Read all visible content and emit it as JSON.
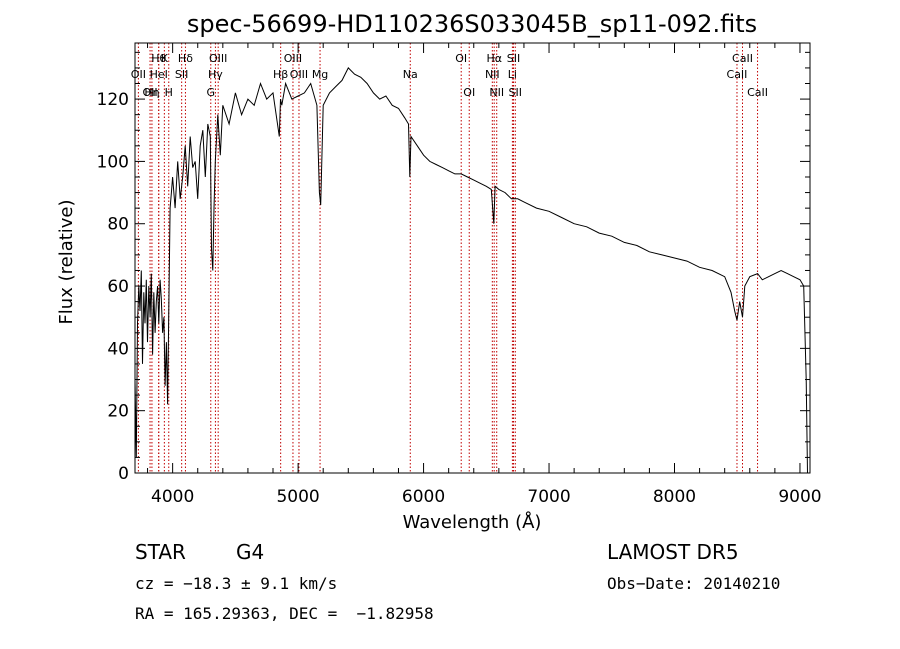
{
  "chart_data": {
    "type": "line",
    "title": "spec-56699-HD110236S033045B_sp11-092.fits",
    "xlabel": "Wavelength (Å)",
    "ylabel": "Flux (relative)",
    "xlim": [
      3700,
      9080
    ],
    "ylim": [
      0,
      138
    ],
    "xticks": [
      4000,
      5000,
      6000,
      7000,
      8000,
      9000
    ],
    "yticks": [
      0,
      20,
      40,
      60,
      80,
      100,
      120
    ],
    "grid": false,
    "series": [
      {
        "x": [
          3700,
          3710,
          3720,
          3730,
          3740,
          3750,
          3760,
          3770,
          3780,
          3790,
          3800,
          3810,
          3820,
          3830,
          3840,
          3850,
          3860,
          3870,
          3880,
          3890,
          3900,
          3910,
          3920,
          3930,
          3940,
          3950,
          3960,
          3970,
          3980,
          3990,
          4000,
          4020,
          4040,
          4060,
          4080,
          4100,
          4120,
          4140,
          4160,
          4180,
          4200,
          4220,
          4240,
          4260,
          4280,
          4300,
          4310,
          4320,
          4330,
          4340,
          4360,
          4380,
          4400,
          4450,
          4500,
          4550,
          4600,
          4650,
          4700,
          4750,
          4800,
          4850,
          4860,
          4870,
          4900,
          4950,
          5000,
          5050,
          5100,
          5150,
          5170,
          5180,
          5200,
          5250,
          5300,
          5350,
          5400,
          5450,
          5500,
          5550,
          5600,
          5650,
          5700,
          5750,
          5800,
          5850,
          5880,
          5890,
          5900,
          5950,
          6000,
          6050,
          6100,
          6150,
          6200,
          6250,
          6300,
          6350,
          6400,
          6450,
          6500,
          6540,
          6560,
          6570,
          6600,
          6650,
          6700,
          6750,
          6800,
          6900,
          7000,
          7100,
          7200,
          7300,
          7400,
          7500,
          7600,
          7700,
          7800,
          7900,
          8000,
          8100,
          8200,
          8300,
          8400,
          8450,
          8480,
          8498,
          8520,
          8542,
          8560,
          8600,
          8662,
          8700,
          8750,
          8800,
          8850,
          8900,
          8950,
          9000,
          9030,
          9050,
          9060
        ],
        "y": [
          30,
          5,
          48,
          60,
          52,
          65,
          35,
          58,
          48,
          62,
          42,
          60,
          50,
          64,
          38,
          58,
          45,
          55,
          60,
          48,
          62,
          56,
          45,
          50,
          28,
          42,
          22,
          55,
          85,
          90,
          95,
          85,
          100,
          88,
          95,
          105,
          92,
          108,
          98,
          100,
          88,
          105,
          110,
          95,
          112,
          108,
          72,
          65,
          85,
          100,
          115,
          102,
          118,
          112,
          122,
          115,
          120,
          118,
          125,
          120,
          122,
          108,
          120,
          118,
          125,
          120,
          121,
          122,
          125,
          118,
          90,
          86,
          118,
          122,
          124,
          126,
          130,
          128,
          127,
          125,
          122,
          120,
          121,
          118,
          117,
          114,
          112,
          95,
          108,
          105,
          102,
          100,
          99,
          98,
          97,
          96,
          96,
          95,
          94,
          93,
          92,
          91,
          80,
          92,
          91,
          90,
          88,
          88,
          87,
          85,
          84,
          82,
          80,
          79,
          77,
          76,
          74,
          73,
          71,
          70,
          69,
          68,
          66,
          65,
          63,
          58,
          52,
          49,
          55,
          50,
          60,
          63,
          64,
          62,
          63,
          64,
          65,
          64,
          63,
          62,
          60,
          30,
          0
        ]
      }
    ],
    "lines": [
      {
        "x": 3727,
        "labels": [
          {
            "text": "OII",
            "row": 2
          }
        ]
      },
      {
        "x": 3820,
        "labels": [
          {
            "text": "OII",
            "row": 3
          }
        ]
      },
      {
        "x": 3835,
        "labels": [
          {
            "text": "Hη",
            "row": 3
          }
        ]
      },
      {
        "x": 3889,
        "labels": [
          {
            "text": "Hθ",
            "row": 1
          }
        ]
      },
      {
        "x": 3934,
        "labels": [
          {
            "text": "K",
            "row": 1
          }
        ]
      },
      {
        "x": 3969,
        "labels": [
          {
            "text": "H",
            "row": 3
          }
        ]
      },
      {
        "x": 3889,
        "labels": [
          {
            "text": "HeI",
            "row": 2
          }
        ]
      },
      {
        "x": 4072,
        "labels": [
          {
            "text": "SII",
            "row": 2
          }
        ]
      },
      {
        "x": 4102,
        "labels": [
          {
            "text": "Hδ",
            "row": 1
          }
        ]
      },
      {
        "x": 4304,
        "labels": [
          {
            "text": "G",
            "row": 3
          }
        ]
      },
      {
        "x": 4341,
        "labels": [
          {
            "text": "Hγ",
            "row": 2
          }
        ]
      },
      {
        "x": 4363,
        "labels": [
          {
            "text": "OIII",
            "row": 1
          }
        ]
      },
      {
        "x": 4861,
        "labels": [
          {
            "text": "Hβ",
            "row": 2
          }
        ]
      },
      {
        "x": 4959,
        "labels": [
          {
            "text": "OIII",
            "row": 1
          }
        ]
      },
      {
        "x": 5007,
        "labels": [
          {
            "text": "OIII",
            "row": 2
          }
        ]
      },
      {
        "x": 5175,
        "labels": [
          {
            "text": "Mg",
            "row": 2
          }
        ]
      },
      {
        "x": 5894,
        "labels": [
          {
            "text": "Na",
            "row": 2
          }
        ]
      },
      {
        "x": 6300,
        "labels": [
          {
            "text": "OI",
            "row": 1
          }
        ]
      },
      {
        "x": 6364,
        "labels": [
          {
            "text": "OI",
            "row": 3
          }
        ]
      },
      {
        "x": 6548,
        "labels": [
          {
            "text": "NII",
            "row": 2
          }
        ]
      },
      {
        "x": 6563,
        "labels": [
          {
            "text": "Hα",
            "row": 1
          }
        ]
      },
      {
        "x": 6583,
        "labels": [
          {
            "text": "NII",
            "row": 3
          }
        ]
      },
      {
        "x": 6708,
        "labels": [
          {
            "text": "Li",
            "row": 2
          }
        ]
      },
      {
        "x": 6717,
        "labels": [
          {
            "text": "SII",
            "row": 1
          }
        ]
      },
      {
        "x": 6731,
        "labels": [
          {
            "text": "SII",
            "row": 3
          }
        ]
      },
      {
        "x": 8498,
        "labels": [
          {
            "text": "CaII",
            "row": 2
          }
        ]
      },
      {
        "x": 8542,
        "labels": [
          {
            "text": "CaII",
            "row": 1
          }
        ]
      },
      {
        "x": 8662,
        "labels": [
          {
            "text": "CaII",
            "row": 3
          }
        ]
      }
    ],
    "line_color": "#000000",
    "marker_color": "#c00000"
  },
  "info": {
    "object_type": "STAR",
    "subclass": "G4",
    "survey": "LAMOST DR5",
    "velocity": "cz = −18.3 ± 9.1 km/s",
    "obs_date": "Obs−Date: 20140210",
    "coords": "RA = 165.29363, DEC =  −1.82958"
  }
}
